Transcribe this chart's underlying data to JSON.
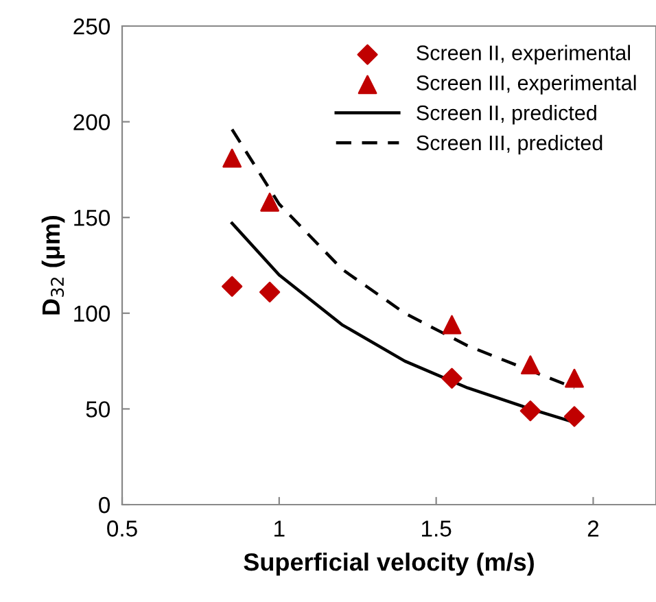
{
  "chart_data": {
    "type": "scatter",
    "xlabel": "Superficial velocity (m/s)",
    "ylabel": "D$_{32}$ (μm)",
    "xlim": [
      0.5,
      2.2
    ],
    "xticks": [
      0.5,
      1,
      1.5,
      2
    ],
    "ylim": [
      0,
      250
    ],
    "yticks": [
      0,
      50,
      100,
      150,
      200,
      250
    ],
    "grid": false,
    "legend": "top right",
    "series": [
      {
        "name": "Screen II, experimental",
        "marker": "diamond",
        "color": "#c00000",
        "x": [
          0.85,
          0.97,
          1.55,
          1.8,
          1.94
        ],
        "values": [
          114,
          111,
          66,
          49,
          46
        ]
      },
      {
        "name": "Screen III, experimental",
        "marker": "triangle",
        "color": "#c00000",
        "x": [
          0.85,
          0.97,
          1.55,
          1.8,
          1.94
        ],
        "values": [
          181,
          158,
          94,
          73,
          66
        ]
      },
      {
        "name": "Screen II, predicted",
        "type": "line",
        "marker": "none",
        "line_style": "solid",
        "color": "#000000",
        "x": [
          0.85,
          1.0,
          1.2,
          1.4,
          1.6,
          1.8,
          1.94
        ],
        "values": [
          147,
          120,
          94,
          75,
          61,
          50,
          43
        ]
      },
      {
        "name": "Screen III, predicted",
        "type": "line",
        "marker": "none",
        "line_style": "dashed",
        "color": "#000000",
        "x": [
          0.85,
          1.0,
          1.2,
          1.4,
          1.6,
          1.8,
          1.94
        ],
        "values": [
          196,
          157,
          123,
          100,
          83,
          70,
          61
        ]
      }
    ]
  }
}
